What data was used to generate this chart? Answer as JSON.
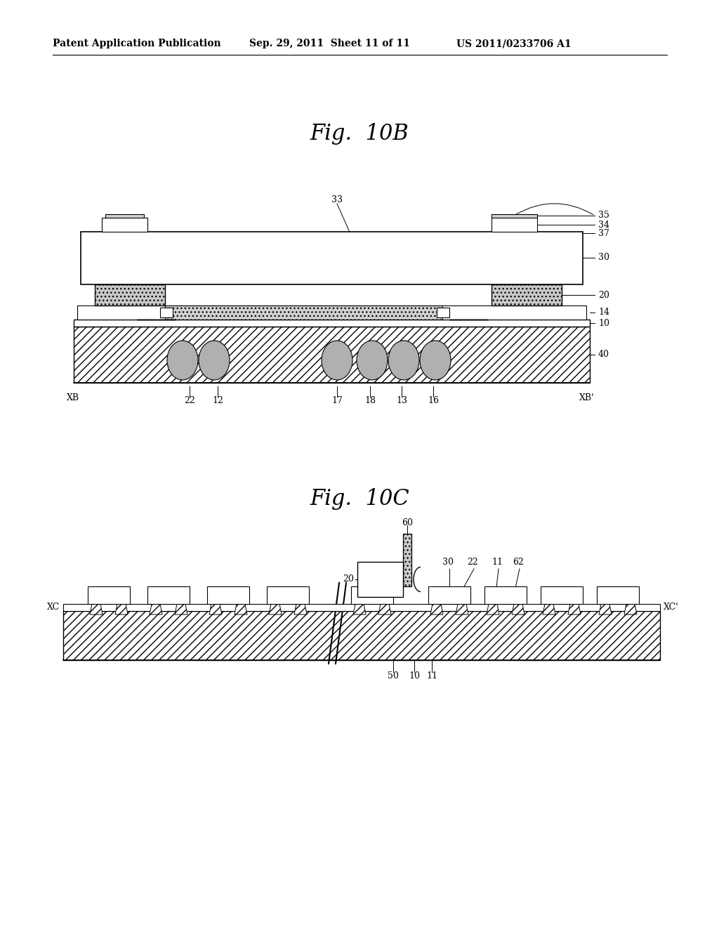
{
  "bg_color": "#ffffff",
  "header_text1": "Patent Application Publication",
  "header_text2": "Sep. 29, 2011  Sheet 11 of 11",
  "header_text3": "US 2011/0233706 A1",
  "fig_title_10B": "Fig.  10B",
  "fig_title_10C": "Fig.  10C"
}
